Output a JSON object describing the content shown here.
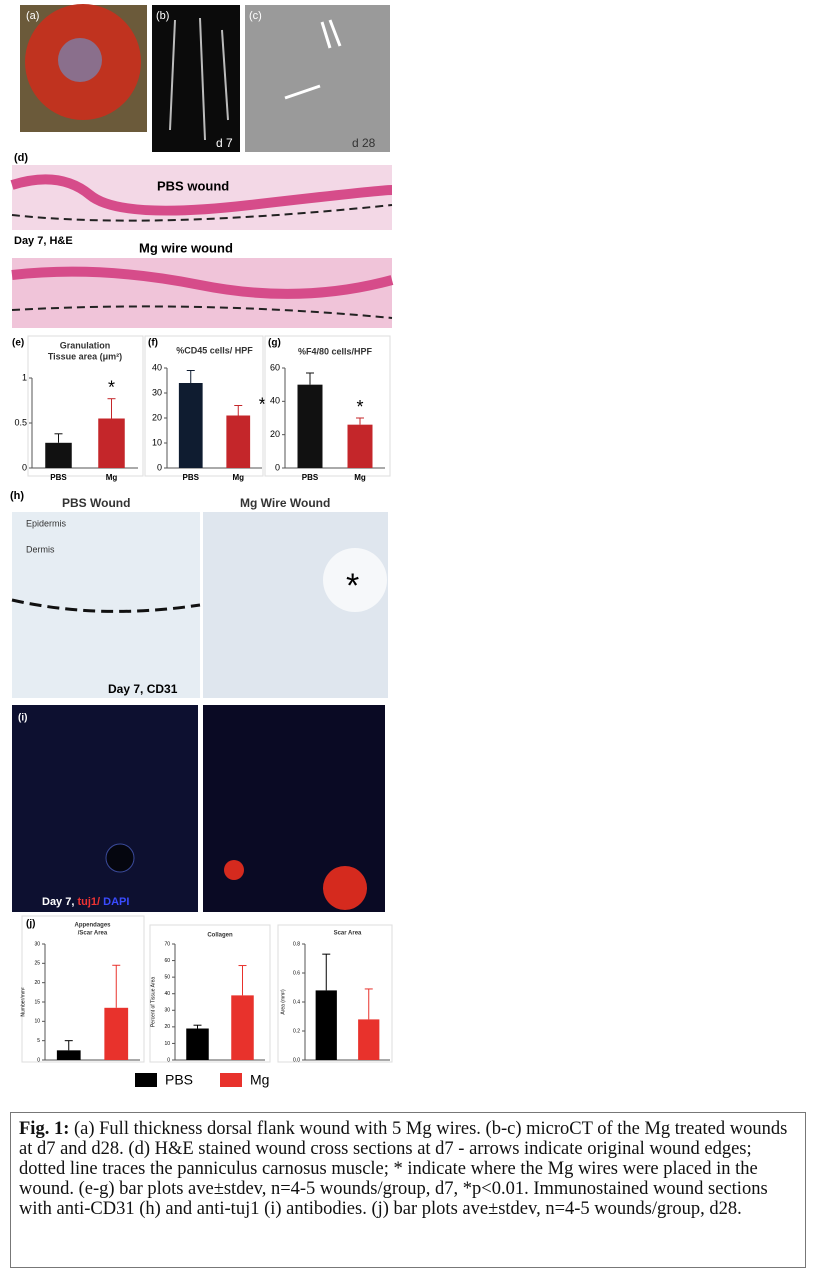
{
  "panels": {
    "a": "(a)",
    "b": "(b)",
    "c": "(c)",
    "d": "(d)",
    "e": "(e)",
    "f": "(f)",
    "g": "(g)",
    "h": "(h)",
    "i": "(i)",
    "j": "(j)"
  },
  "images": {
    "b_day": "d 7",
    "c_day": "d 28",
    "pbs_wound": "PBS wound",
    "he_label": "Day 7, H&E",
    "mg_wound": "Mg wire wound",
    "h_pbs": "PBS Wound",
    "h_mg": "Mg Wire Wound",
    "epidermis": "Epidermis",
    "dermis": "Dermis",
    "cd31": "Day 7, CD31",
    "h_star": "*",
    "i_day": "Day 7,",
    "i_tuj1": "tuj1/",
    "i_dapi": "DAPI"
  },
  "chart_data": [
    {
      "type": "bar",
      "title": [
        "Granulation",
        "Tissue area (μm²)"
      ],
      "categories": [
        "PBS",
        "Mg"
      ],
      "values": [
        0.28,
        0.55
      ],
      "errors": [
        0.1,
        0.22
      ],
      "colors": [
        "#111111",
        "#c4262a"
      ],
      "ylim": [
        0,
        1
      ],
      "yticks": [
        0,
        0.5,
        1
      ],
      "annotation": "*"
    },
    {
      "type": "bar",
      "title": [
        "%CD45 cells/ HPF"
      ],
      "categories": [
        "PBS",
        "Mg"
      ],
      "values": [
        34,
        21
      ],
      "errors": [
        5,
        4
      ],
      "colors": [
        "#0f1c30",
        "#c4262a"
      ],
      "ylim": [
        0,
        40
      ],
      "yticks": [
        0,
        10,
        20,
        30,
        40
      ],
      "annotation": "*"
    },
    {
      "type": "bar",
      "title": [
        "%F4/80 cells/HPF"
      ],
      "categories": [
        "PBS",
        "Mg"
      ],
      "values": [
        50,
        26
      ],
      "errors": [
        7,
        4
      ],
      "colors": [
        "#111111",
        "#c4262a"
      ],
      "ylim": [
        0,
        60
      ],
      "yticks": [
        0,
        20,
        40,
        60
      ],
      "annotation": "*"
    },
    {
      "type": "bar",
      "title": [
        "Appendages",
        "/Scar Area"
      ],
      "y_label": "Number/mm²",
      "values": [
        2.5,
        13.5
      ],
      "errors": [
        2.5,
        11
      ],
      "colors": [
        "#000000",
        "#e8322c"
      ],
      "ylim": [
        0,
        30
      ],
      "yticks": [
        0,
        5,
        10,
        15,
        20,
        25,
        30
      ]
    },
    {
      "type": "bar",
      "title": [
        "Collagen"
      ],
      "y_label": "Percent of Tissue Area",
      "values": [
        19,
        39
      ],
      "errors": [
        2,
        18
      ],
      "colors": [
        "#000000",
        "#e8322c"
      ],
      "ylim": [
        0,
        70
      ],
      "yticks": [
        0,
        10,
        20,
        30,
        40,
        50,
        60,
        70
      ]
    },
    {
      "type": "bar",
      "title": [
        "Scar Area"
      ],
      "y_label": "Area (mm²)",
      "values": [
        0.48,
        0.28
      ],
      "errors": [
        0.25,
        0.21
      ],
      "colors": [
        "#000000",
        "#e8322c"
      ],
      "ylim": [
        0,
        0.8
      ],
      "yticks": [
        {
          "value": 0,
          "label": "0.0"
        },
        0.2,
        0.4,
        0.6,
        0.8
      ]
    }
  ],
  "legend": [
    {
      "name": "PBS",
      "color": "#000000"
    },
    {
      "name": "Mg",
      "color": "#e8322c"
    }
  ],
  "caption": {
    "label": "Fig. 1:",
    "text": "(a) Full thickness dorsal flank wound with 5 Mg wires. (b-c) microCT of the Mg treated wounds at d7 and d28. (d) H&E stained wound cross sections at d7 - arrows indicate original wound edges; dotted line traces the panniculus carnosus muscle; * indicate where the Mg wires were placed in the wound. (e-g) bar plots ave±stdev, n=4-5 wounds/group, d7, *p<0.01. Immunostained wound sections with anti-CD31 (h) and anti-tuj1 (i) antibodies. (j) bar plots ave±stdev, n=4-5 wounds/group, d28."
  }
}
